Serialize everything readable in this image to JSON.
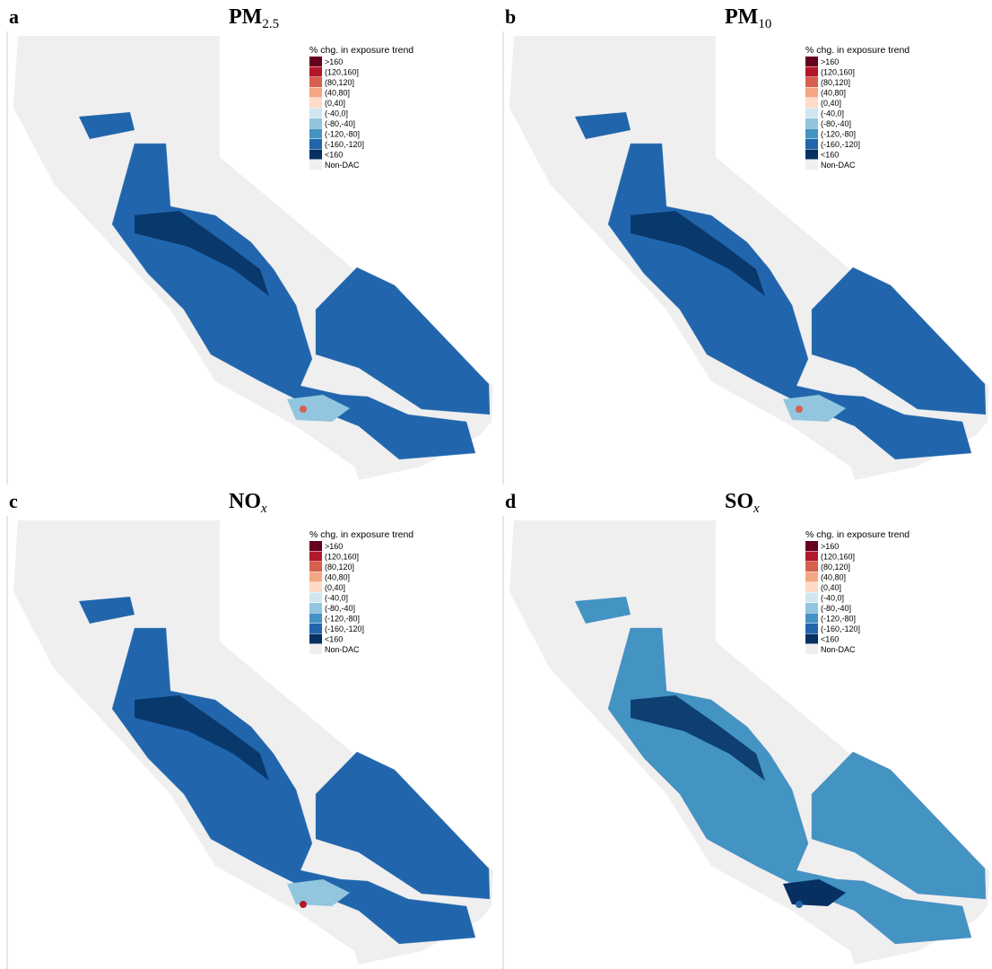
{
  "legend": {
    "title": "% chg. in exposure trend",
    "entries": [
      {
        "label": ">160",
        "color": "#67001f"
      },
      {
        "label": "(120,160]",
        "color": "#b2182b"
      },
      {
        "label": "(80,120]",
        "color": "#d6604d"
      },
      {
        "label": "(40,80]",
        "color": "#f4a582"
      },
      {
        "label": "(0,40]",
        "color": "#fddbc7"
      },
      {
        "label": "(-40,0]",
        "color": "#d1e5f0"
      },
      {
        "label": "(-80,-40]",
        "color": "#92c5de"
      },
      {
        "label": "(-120,-80]",
        "color": "#4393c3"
      },
      {
        "label": "(-160,-120]",
        "color": "#2166ac"
      },
      {
        "label": "<160",
        "color": "#053061"
      },
      {
        "label": "Non-DAC",
        "color": "#efefef"
      }
    ]
  },
  "panels": [
    {
      "letter": "a",
      "title": {
        "main": "PM",
        "sub": "2.5"
      }
    },
    {
      "letter": "b",
      "title": {
        "main": "PM",
        "sub": "10"
      }
    },
    {
      "letter": "c",
      "title": {
        "main": "NO",
        "sub": "x"
      }
    },
    {
      "letter": "d",
      "title": {
        "main": "SO",
        "sub": "x"
      }
    }
  ]
}
